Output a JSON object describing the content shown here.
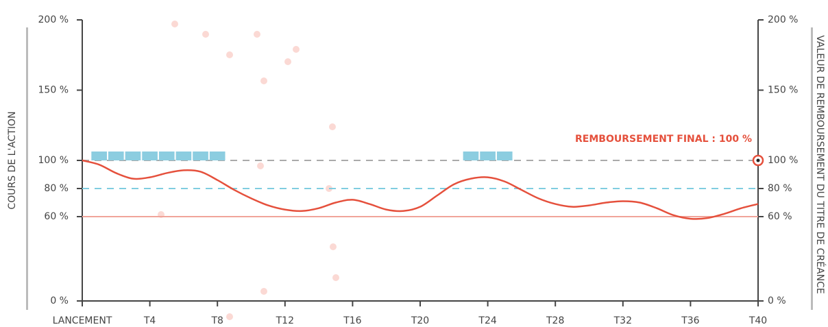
{
  "chart_data": {
    "type": "line",
    "annotation": "REMBOURSEMENT FINAL : 100 %",
    "annotation_point": [
      40,
      100
    ],
    "y_label": "COURS DE L'ACTION",
    "y2_label": "VALEUR DE REMBOURSEMENT DU TITRE DE CRÉANCE",
    "xlim": [
      0,
      40
    ],
    "xticks": [
      {
        "value": 0,
        "label": "LANCEMENT"
      },
      {
        "value": 4,
        "label": "T4"
      },
      {
        "value": 8,
        "label": "T8"
      },
      {
        "value": 12,
        "label": "T12"
      },
      {
        "value": 16,
        "label": "T16"
      },
      {
        "value": 20,
        "label": "T20"
      },
      {
        "value": 24,
        "label": "T24"
      },
      {
        "value": 28,
        "label": "T28"
      },
      {
        "value": 32,
        "label": "T32"
      },
      {
        "value": 36,
        "label": "T36"
      },
      {
        "value": 40,
        "label": "T40"
      }
    ],
    "ylim": [
      0,
      200
    ],
    "yticks": [
      {
        "value": 0,
        "label": "0 %"
      },
      {
        "value": 60,
        "label": "60 %"
      },
      {
        "value": 80,
        "label": "80 %"
      },
      {
        "value": 100,
        "label": "100 %"
      },
      {
        "value": 150,
        "label": "150 %"
      },
      {
        "value": 200,
        "label": "200 %"
      }
    ],
    "y2lim": [
      0,
      200
    ],
    "y2ticks": [
      {
        "value": 0,
        "label": "0 %"
      },
      {
        "value": 60,
        "label": "60 %"
      },
      {
        "value": 80,
        "label": "80 %"
      },
      {
        "value": 100,
        "label": "100 %"
      },
      {
        "value": 150,
        "label": "150 %"
      },
      {
        "value": 200,
        "label": "200 %"
      }
    ],
    "reference_lines": [
      {
        "value": 100,
        "color": "#aaaaaa",
        "style": "dashed"
      },
      {
        "value": 80,
        "color": "#7fcde0",
        "style": "dashed"
      },
      {
        "value": 60,
        "color": "#f0a49a",
        "style": "solid"
      }
    ],
    "coupon_x": [
      1,
      2,
      3,
      4,
      5,
      6,
      7,
      8,
      23,
      24,
      25
    ],
    "coupon_color": "#8ccde0",
    "series": [
      {
        "name": "Cours de l'action",
        "color": "#e5503c",
        "x": [
          0,
          1,
          2,
          3,
          4,
          5,
          6,
          7,
          8,
          9,
          10,
          11,
          12,
          13,
          14,
          15,
          16,
          17,
          18,
          19,
          20,
          21,
          22,
          23,
          24,
          25,
          26,
          27,
          28,
          29,
          30,
          31,
          32,
          33,
          34,
          35,
          36,
          37,
          38,
          39,
          40
        ],
        "values": [
          100,
          97,
          91,
          87,
          88,
          91,
          93,
          92,
          86,
          79,
          73,
          68,
          65,
          64,
          66,
          70,
          72,
          69,
          65,
          64,
          67,
          75,
          83,
          87,
          88,
          85,
          79,
          73,
          69,
          67,
          68,
          70,
          71,
          70,
          66,
          61,
          58.5,
          59,
          62,
          66,
          69
        ]
      }
    ]
  }
}
